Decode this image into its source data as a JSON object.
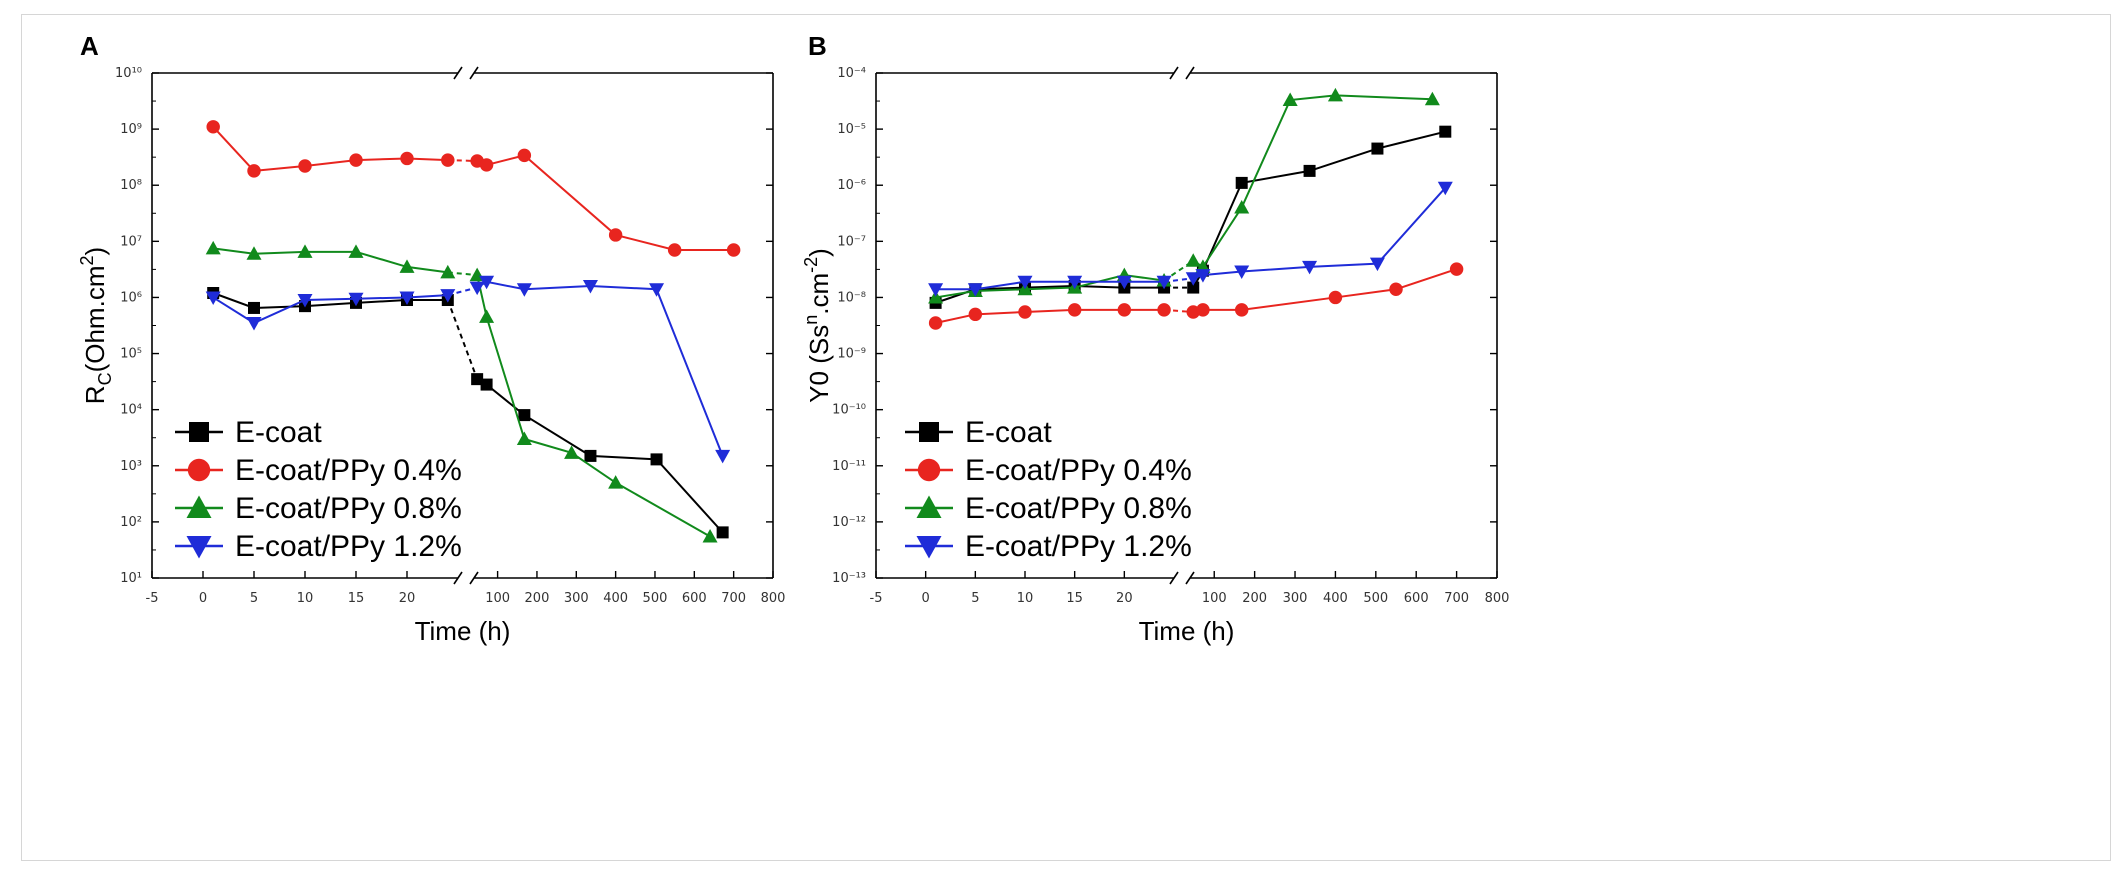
{
  "colors": {
    "E-coat": "#000000",
    "E-coat/PPy 0.4%": "#e8251f",
    "E-coat/PPy 0.8%": "#118a1c",
    "E-coat/PPy 1.2%": "#1f2cd8"
  },
  "chart_data": [
    {
      "type": "line",
      "panel": "A",
      "xlabel": "Time (h)",
      "ylabel_parts": [
        "R",
        "C",
        "(Ohm.cm",
        "2",
        ")"
      ],
      "x_axis_break": true,
      "x_left_ticks": [
        -5,
        0,
        5,
        10,
        15,
        20
      ],
      "x_left_range": [
        -5,
        25
      ],
      "x_right_ticks": [
        100,
        200,
        300,
        400,
        500,
        600,
        700,
        800
      ],
      "x_right_range": [
        40,
        800
      ],
      "y_scale": "log",
      "y_tick_exponents": [
        1,
        2,
        3,
        4,
        5,
        6,
        7,
        8,
        9,
        10
      ],
      "legend_position": "bottom-left",
      "series": [
        {
          "name": "E-coat",
          "marker": "square",
          "left": [
            [
              1,
              1200000.0
            ],
            [
              5,
              650000.0
            ],
            [
              10,
              700000.0
            ],
            [
              15,
              800000.0
            ],
            [
              20,
              900000.0
            ],
            [
              24,
              900000.0
            ]
          ],
          "right": [
            [
              48,
              35000.0
            ],
            [
              72,
              28000.0
            ],
            [
              168,
              8000.0
            ],
            [
              336,
              1500.0
            ],
            [
              504,
              1300.0
            ],
            [
              672,
              65
            ]
          ]
        },
        {
          "name": "E-coat/PPy 0.4%",
          "marker": "circle",
          "left": [
            [
              1,
              1100000000.0
            ],
            [
              5,
              180000000.0
            ],
            [
              10,
              220000000.0
            ],
            [
              15,
              280000000.0
            ],
            [
              20,
              300000000.0
            ],
            [
              24,
              280000000.0
            ]
          ],
          "right": [
            [
              48,
              270000000.0
            ],
            [
              72,
              230000000.0
            ],
            [
              168,
              340000000.0
            ],
            [
              400,
              13000000.0
            ],
            [
              550,
              7000000.0
            ],
            [
              700,
              7000000.0
            ]
          ]
        },
        {
          "name": "E-coat/PPy 0.8%",
          "marker": "triangle-up",
          "left": [
            [
              1,
              7500000.0
            ],
            [
              5,
              6000000.0
            ],
            [
              10,
              6500000.0
            ],
            [
              15,
              6500000.0
            ],
            [
              20,
              3500000.0
            ],
            [
              24,
              2800000.0
            ]
          ],
          "right": [
            [
              48,
              2500000.0
            ],
            [
              72,
              450000.0
            ],
            [
              168,
              3000.0
            ],
            [
              288,
              1700.0
            ],
            [
              400,
              500.0
            ],
            [
              640,
              55
            ]
          ]
        },
        {
          "name": "E-coat/PPy 1.2%",
          "marker": "triangle-down",
          "left": [
            [
              1,
              1000000.0
            ],
            [
              5,
              350000.0
            ],
            [
              10,
              900000.0
            ],
            [
              15,
              950000.0
            ],
            [
              20,
              1000000.0
            ],
            [
              24,
              1100000.0
            ]
          ],
          "right": [
            [
              48,
              1500000.0
            ],
            [
              72,
              1900000.0
            ],
            [
              168,
              1400000.0
            ],
            [
              336,
              1600000.0
            ],
            [
              504,
              1400000.0
            ],
            [
              672,
              1500.0
            ]
          ]
        }
      ]
    },
    {
      "type": "line",
      "panel": "B",
      "xlabel": "Time (h)",
      "ylabel_parts": [
        "Y0 (Ss",
        "n",
        ".cm",
        "-2",
        ")"
      ],
      "x_axis_break": true,
      "x_left_ticks": [
        -5,
        0,
        5,
        10,
        15,
        20
      ],
      "x_left_range": [
        -5,
        25
      ],
      "x_right_ticks": [
        100,
        200,
        300,
        400,
        500,
        600,
        700,
        800
      ],
      "x_right_range": [
        40,
        800
      ],
      "y_scale": "log",
      "y_tick_exponents": [
        -13,
        -12,
        -11,
        -10,
        -9,
        -8,
        -7,
        -6,
        -5,
        -4
      ],
      "legend_position": "bottom-left",
      "series": [
        {
          "name": "E-coat",
          "marker": "square",
          "left": [
            [
              1,
              8e-09
            ],
            [
              5,
              1.4e-08
            ],
            [
              10,
              1.5e-08
            ],
            [
              15,
              1.6e-08
            ],
            [
              20,
              1.5e-08
            ],
            [
              24,
              1.5e-08
            ]
          ],
          "right": [
            [
              48,
              1.5e-08
            ],
            [
              72,
              3e-08
            ],
            [
              168,
              1.1e-06
            ],
            [
              336,
              1.8e-06
            ],
            [
              504,
              4.5e-06
            ],
            [
              672,
              9e-06
            ]
          ]
        },
        {
          "name": "E-coat/PPy 0.4%",
          "marker": "circle",
          "left": [
            [
              1,
              3.5e-09
            ],
            [
              5,
              5e-09
            ],
            [
              10,
              5.5e-09
            ],
            [
              15,
              6e-09
            ],
            [
              20,
              6e-09
            ],
            [
              24,
              6e-09
            ]
          ],
          "right": [
            [
              48,
              5.5e-09
            ],
            [
              72,
              6e-09
            ],
            [
              168,
              6e-09
            ],
            [
              400,
              1e-08
            ],
            [
              550,
              1.4e-08
            ],
            [
              700,
              3.2e-08
            ]
          ]
        },
        {
          "name": "E-coat/PPy 0.8%",
          "marker": "triangle-up",
          "left": [
            [
              1,
              1e-08
            ],
            [
              5,
              1.3e-08
            ],
            [
              10,
              1.4e-08
            ],
            [
              15,
              1.5e-08
            ],
            [
              20,
              2.5e-08
            ],
            [
              24,
              2e-08
            ]
          ],
          "right": [
            [
              48,
              4.5e-08
            ],
            [
              72,
              3.5e-08
            ],
            [
              168,
              4e-07
            ],
            [
              288,
              3.3e-05
            ],
            [
              400,
              4e-05
            ],
            [
              640,
              3.4e-05
            ]
          ]
        },
        {
          "name": "E-coat/PPy 1.2%",
          "marker": "triangle-down",
          "left": [
            [
              1,
              1.4e-08
            ],
            [
              5,
              1.4e-08
            ],
            [
              10,
              1.9e-08
            ],
            [
              15,
              1.9e-08
            ],
            [
              20,
              1.9e-08
            ],
            [
              24,
              1.9e-08
            ]
          ],
          "right": [
            [
              48,
              2.2e-08
            ],
            [
              72,
              2.5e-08
            ],
            [
              168,
              2.9e-08
            ],
            [
              336,
              3.5e-08
            ],
            [
              504,
              4e-08
            ],
            [
              672,
              9e-07
            ]
          ]
        }
      ]
    }
  ]
}
